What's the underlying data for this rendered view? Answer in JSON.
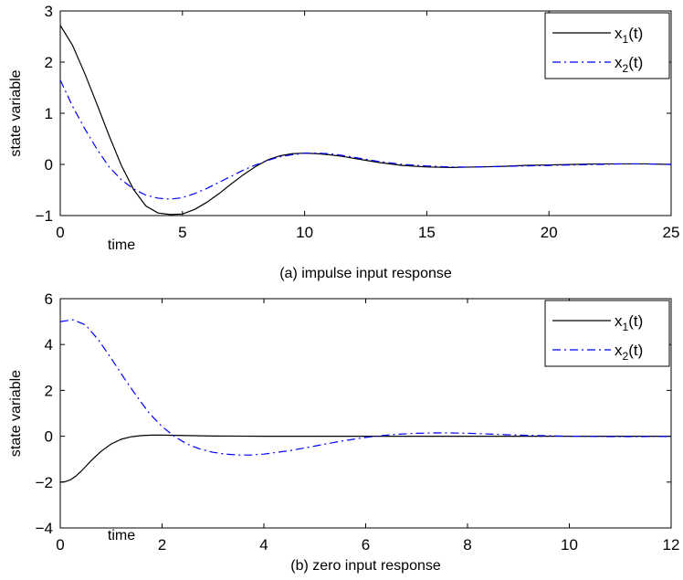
{
  "chart_data": [
    {
      "type": "line",
      "caption": "(a) impulse input response",
      "xlabel": "time",
      "ylabel": "state variable",
      "xlim": [
        0,
        25
      ],
      "ylim": [
        -1,
        3
      ],
      "xticks": [
        0,
        5,
        10,
        15,
        20,
        25
      ],
      "yticks": [
        -1,
        0,
        1,
        2,
        3
      ],
      "grid": false,
      "legend_position": "top-right",
      "series": [
        {
          "name": "x1(t)",
          "legend_base": "x",
          "legend_sub": "1",
          "legend_suffix": "(t)",
          "style": "solid",
          "color": "#000000",
          "x": [
            0,
            0.5,
            1,
            1.5,
            2,
            2.5,
            3,
            3.5,
            4,
            4.5,
            5,
            5.5,
            6,
            6.5,
            7,
            7.5,
            8,
            8.5,
            9,
            9.5,
            10,
            10.5,
            11,
            11.5,
            12,
            12.5,
            13,
            14,
            15,
            16,
            17,
            18,
            19,
            20,
            21,
            22,
            23,
            24,
            25
          ],
          "y": [
            2.72,
            2.33,
            1.78,
            1.18,
            0.56,
            -0.02,
            -0.49,
            -0.81,
            -0.95,
            -0.98,
            -0.97,
            -0.88,
            -0.74,
            -0.57,
            -0.38,
            -0.2,
            -0.04,
            0.09,
            0.17,
            0.21,
            0.22,
            0.21,
            0.19,
            0.16,
            0.12,
            0.08,
            0.04,
            -0.02,
            -0.05,
            -0.06,
            -0.05,
            -0.04,
            -0.02,
            -0.01,
            0.0,
            0.01,
            0.01,
            0.01,
            0.0
          ]
        },
        {
          "name": "x2(t)",
          "legend_base": "x",
          "legend_sub": "2",
          "legend_suffix": "(t)",
          "style": "dashdot",
          "color": "#0000ff",
          "x": [
            0,
            0.5,
            1,
            1.5,
            2,
            2.5,
            3,
            3.5,
            4,
            4.5,
            5,
            5.5,
            6,
            6.5,
            7,
            7.5,
            8,
            8.5,
            9,
            9.5,
            10,
            10.5,
            11,
            11.5,
            12,
            12.5,
            13,
            14,
            15,
            16,
            17,
            18,
            19,
            20,
            21,
            22,
            23,
            24,
            25
          ],
          "y": [
            1.65,
            1.14,
            0.7,
            0.3,
            -0.05,
            -0.3,
            -0.48,
            -0.6,
            -0.66,
            -0.68,
            -0.65,
            -0.57,
            -0.47,
            -0.35,
            -0.23,
            -0.11,
            -0.01,
            0.08,
            0.15,
            0.19,
            0.22,
            0.22,
            0.21,
            0.18,
            0.14,
            0.1,
            0.06,
            0.0,
            -0.03,
            -0.05,
            -0.05,
            -0.04,
            -0.03,
            -0.02,
            -0.01,
            0.0,
            0.01,
            0.01,
            0.0
          ]
        }
      ]
    },
    {
      "type": "line",
      "caption": "(b) zero input response",
      "xlabel": "time",
      "ylabel": "state variable",
      "xlim": [
        0,
        12
      ],
      "ylim": [
        -4,
        6
      ],
      "xticks": [
        0,
        2,
        4,
        6,
        8,
        10,
        12
      ],
      "yticks": [
        -4,
        -2,
        0,
        2,
        4,
        6
      ],
      "grid": false,
      "legend_position": "top-right",
      "series": [
        {
          "name": "x1(t)",
          "legend_base": "x",
          "legend_sub": "1",
          "legend_suffix": "(t)",
          "style": "solid",
          "color": "#000000",
          "x": [
            0,
            0.1,
            0.2,
            0.3,
            0.4,
            0.5,
            0.6,
            0.8,
            1.0,
            1.2,
            1.4,
            1.6,
            1.8,
            2.0,
            2.5,
            3,
            4,
            5,
            6,
            7,
            8,
            9,
            10,
            11,
            12
          ],
          "y": [
            -2.0,
            -1.98,
            -1.9,
            -1.75,
            -1.55,
            -1.32,
            -1.08,
            -0.66,
            -0.34,
            -0.13,
            -0.02,
            0.03,
            0.05,
            0.05,
            0.03,
            0.01,
            0.0,
            0.0,
            0.0,
            0.0,
            0.0,
            0.0,
            0.0,
            0.0,
            0.0
          ]
        },
        {
          "name": "x2(t)",
          "legend_base": "x",
          "legend_sub": "2",
          "legend_suffix": "(t)",
          "style": "dashdot",
          "color": "#0000ff",
          "x": [
            0,
            0.25,
            0.5,
            0.75,
            1.0,
            1.25,
            1.5,
            1.75,
            2.0,
            2.25,
            2.5,
            2.75,
            3.0,
            3.25,
            3.5,
            3.75,
            4.0,
            4.5,
            5.0,
            5.5,
            6.0,
            6.5,
            7.0,
            7.5,
            8.0,
            8.5,
            9.0,
            10.0,
            11.0,
            12.0
          ],
          "y": [
            5.0,
            5.08,
            4.85,
            4.2,
            3.4,
            2.55,
            1.75,
            1.0,
            0.42,
            -0.02,
            -0.35,
            -0.56,
            -0.7,
            -0.78,
            -0.82,
            -0.82,
            -0.78,
            -0.63,
            -0.43,
            -0.22,
            -0.05,
            0.07,
            0.13,
            0.15,
            0.13,
            0.09,
            0.05,
            0.0,
            -0.02,
            -0.01
          ]
        }
      ]
    }
  ]
}
